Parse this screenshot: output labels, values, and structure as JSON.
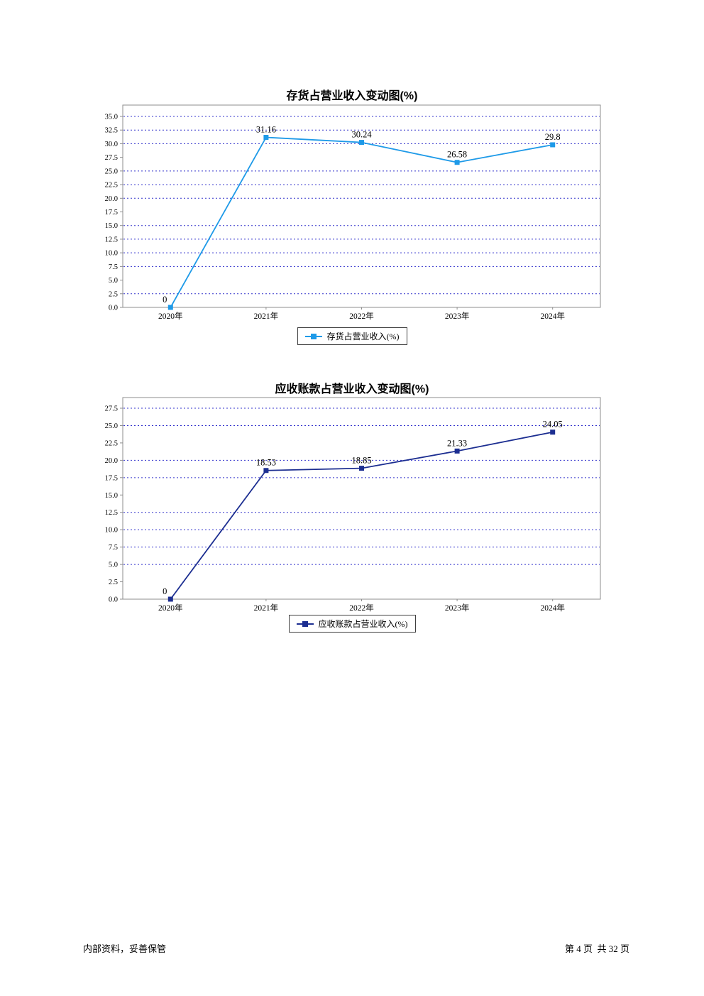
{
  "page": {
    "footer_left": "内部资料，妥善保管",
    "footer_right": "第 4 页  共 32 页"
  },
  "chart_data": [
    {
      "type": "line",
      "title": "存货占营业收入变动图(%)",
      "categories": [
        "2020年",
        "2021年",
        "2022年",
        "2023年",
        "2024年"
      ],
      "series": [
        {
          "name": "存货占营业收入(%)",
          "values": [
            0,
            31.16,
            30.24,
            26.58,
            29.8
          ]
        }
      ],
      "point_labels": [
        "0",
        "31.16",
        "30.24",
        "26.58",
        "29.8"
      ],
      "ylim": [
        0,
        35
      ],
      "ytick_step": 2.5,
      "grid": true,
      "gridlines_absent": [
        27.5,
        17.5,
        5
      ],
      "legend_position": "bottom",
      "marker": "square",
      "colors": {
        "line": "#1E9AE8",
        "grid": "#3333CC",
        "axis": "#8C8C8C"
      }
    },
    {
      "type": "line",
      "title": "应收账款占营业收入变动图(%)",
      "categories": [
        "2020年",
        "2021年",
        "2022年",
        "2023年",
        "2024年"
      ],
      "series": [
        {
          "name": "应收账款占营业收入(%)",
          "values": [
            0,
            18.53,
            18.85,
            21.33,
            24.05
          ]
        }
      ],
      "point_labels": [
        "0",
        "18.53",
        "18.85",
        "21.33",
        "24.05"
      ],
      "ylim": [
        0,
        27.5
      ],
      "ytick_step": 2.5,
      "grid": true,
      "gridlines_absent": [
        22.5,
        15,
        2.5
      ],
      "legend_position": "bottom",
      "marker": "square",
      "colors": {
        "line": "#1C2E91",
        "grid": "#3333CC",
        "axis": "#8C8C8C"
      }
    }
  ]
}
